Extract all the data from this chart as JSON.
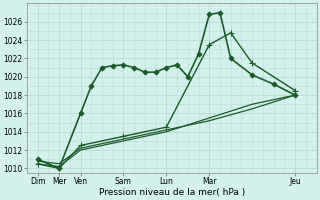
{
  "xlabel": "Pression niveau de la mer( hPa )",
  "background_color": "#d4f0ec",
  "grid_color": "#b8dcd8",
  "line_color": "#1a5c28",
  "ylim": [
    1009.5,
    1028.0
  ],
  "yticks": [
    1010,
    1012,
    1014,
    1016,
    1018,
    1020,
    1022,
    1024,
    1026
  ],
  "xlim": [
    -0.5,
    13.0
  ],
  "xtick_labels": [
    "Dim",
    "Mer",
    "Ven",
    "Sam",
    "Lun",
    "Mar",
    "Jeu"
  ],
  "xtick_positions": [
    0,
    1,
    2,
    4,
    6,
    8,
    12
  ],
  "series": [
    {
      "x": [
        0,
        1,
        2,
        2.5,
        3,
        3.5,
        4,
        4.5,
        5,
        5.5,
        6,
        6.5,
        7,
        7.5,
        8,
        8.5,
        9,
        10,
        11,
        12
      ],
      "y": [
        1011,
        1010,
        1016,
        1019,
        1021,
        1021.2,
        1021.3,
        1021,
        1020.5,
        1020.5,
        1021,
        1021.3,
        1020,
        1022.5,
        1026.8,
        1027.0,
        1022,
        1020.2,
        1019.2,
        1018
      ],
      "marker": "D",
      "linewidth": 1.2,
      "markersize": 2.5,
      "markevery": [
        0,
        1,
        2,
        3,
        4,
        5,
        6,
        7,
        8,
        9,
        10,
        11,
        12,
        13,
        14,
        15,
        16,
        17,
        18,
        19
      ]
    },
    {
      "x": [
        0,
        1,
        2,
        4,
        6,
        8,
        9,
        10,
        12
      ],
      "y": [
        1010.5,
        1010,
        1012.5,
        1013.5,
        1014.5,
        1023.5,
        1024.8,
        1021.5,
        1018.5
      ],
      "marker": "+",
      "linewidth": 1.0,
      "markersize": 4,
      "markevery": [
        0,
        1,
        2,
        3,
        4,
        5,
        6,
        7,
        8
      ]
    },
    {
      "x": [
        0,
        1,
        2,
        4,
        6,
        8,
        10,
        12
      ],
      "y": [
        1010.5,
        1010.2,
        1012,
        1013,
        1014,
        1015.5,
        1017,
        1018
      ],
      "marker": null,
      "linewidth": 0.9
    },
    {
      "x": [
        0,
        1,
        2,
        4,
        6,
        8,
        10,
        12
      ],
      "y": [
        1010.8,
        1010.5,
        1012.2,
        1013.2,
        1014.2,
        1015.2,
        1016.5,
        1018
      ],
      "marker": null,
      "linewidth": 0.9
    }
  ]
}
